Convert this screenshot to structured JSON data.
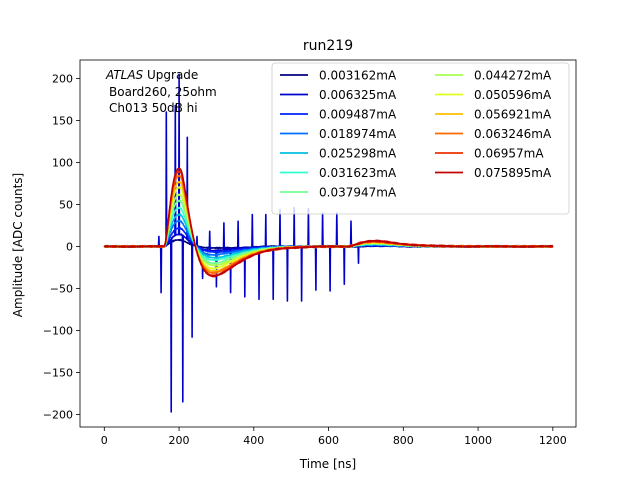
{
  "chart_data": {
    "type": "line",
    "title": "run219",
    "xlabel": "Time [ns]",
    "ylabel": "Amplitude [ADC counts]",
    "xlim": [
      -65,
      1262
    ],
    "ylim": [
      -215,
      222
    ],
    "xticks": [
      0,
      200,
      400,
      600,
      800,
      1000,
      1200
    ],
    "yticks": [
      -200,
      -150,
      -100,
      -50,
      0,
      50,
      100,
      150,
      200
    ],
    "grid": false,
    "legend_placement": "top-right",
    "legend_columns": 2,
    "annotation": {
      "italic": "ATLAS",
      "line1_rest": " Upgrade",
      "line2": "Board260, 25ohm",
      "line3": "Ch013 50dB hi"
    },
    "series": [
      {
        "name": "0.003162mA",
        "color": "#00007f",
        "peak": 8,
        "under": -3,
        "bump": 0.5
      },
      {
        "name": "0.006325mA",
        "color": "#0000cd",
        "peak": 14,
        "under": -6,
        "bump": 1.0,
        "noisy": true
      },
      {
        "name": "0.009487mA",
        "color": "#0022ff",
        "peak": 22,
        "under": -9,
        "bump": 1.5
      },
      {
        "name": "0.018974mA",
        "color": "#0070ff",
        "peak": 30,
        "under": -13,
        "bump": 2.0
      },
      {
        "name": "0.025298mA",
        "color": "#00c0e0",
        "peak": 38,
        "under": -17,
        "bump": 2.5
      },
      {
        "name": "0.031623mA",
        "color": "#30ffd0",
        "peak": 46,
        "under": -21,
        "bump": 3.0
      },
      {
        "name": "0.037947mA",
        "color": "#70ff90",
        "peak": 54,
        "under": -25,
        "bump": 3.5
      },
      {
        "name": "0.044272mA",
        "color": "#a8ff50",
        "peak": 62,
        "under": -29,
        "bump": 4.0
      },
      {
        "name": "0.050596mA",
        "color": "#e0ff20",
        "peak": 70,
        "under": -33,
        "bump": 4.5
      },
      {
        "name": "0.056921mA",
        "color": "#ffc000",
        "peak": 77,
        "under": -37,
        "bump": 5.0
      },
      {
        "name": "0.063246mA",
        "color": "#ff6a00",
        "peak": 84,
        "under": -40,
        "bump": 5.5
      },
      {
        "name": "0.06957mA",
        "color": "#ee3000",
        "peak": 89,
        "under": -43,
        "bump": 6.0
      },
      {
        "name": "0.075895mA",
        "color": "#c00000",
        "peak": 93,
        "under": -45,
        "bump": 6.5
      }
    ],
    "noise_spikes": [
      {
        "t": 146,
        "v": 12
      },
      {
        "t": 152,
        "v": -55
      },
      {
        "t": 166,
        "v": 160
      },
      {
        "t": 179,
        "v": -197
      },
      {
        "t": 190,
        "v": 168
      },
      {
        "t": 200,
        "v": 205
      },
      {
        "t": 210,
        "v": -185
      },
      {
        "t": 222,
        "v": 130
      },
      {
        "t": 235,
        "v": -108
      },
      {
        "t": 248,
        "v": 12
      },
      {
        "t": 263,
        "v": -38
      },
      {
        "t": 282,
        "v": 18
      },
      {
        "t": 300,
        "v": -48
      },
      {
        "t": 320,
        "v": 28
      },
      {
        "t": 338,
        "v": -55
      },
      {
        "t": 358,
        "v": 30
      },
      {
        "t": 376,
        "v": -60
      },
      {
        "t": 396,
        "v": 38
      },
      {
        "t": 414,
        "v": -63
      },
      {
        "t": 432,
        "v": 38
      },
      {
        "t": 452,
        "v": -63
      },
      {
        "t": 470,
        "v": 44
      },
      {
        "t": 490,
        "v": -65
      },
      {
        "t": 508,
        "v": 46
      },
      {
        "t": 528,
        "v": -65
      },
      {
        "t": 546,
        "v": 45
      },
      {
        "t": 566,
        "v": -52
      },
      {
        "t": 584,
        "v": 40
      },
      {
        "t": 604,
        "v": -53
      },
      {
        "t": 622,
        "v": 40
      },
      {
        "t": 642,
        "v": -45
      },
      {
        "t": 660,
        "v": 30
      },
      {
        "t": 680,
        "v": -20
      }
    ]
  }
}
